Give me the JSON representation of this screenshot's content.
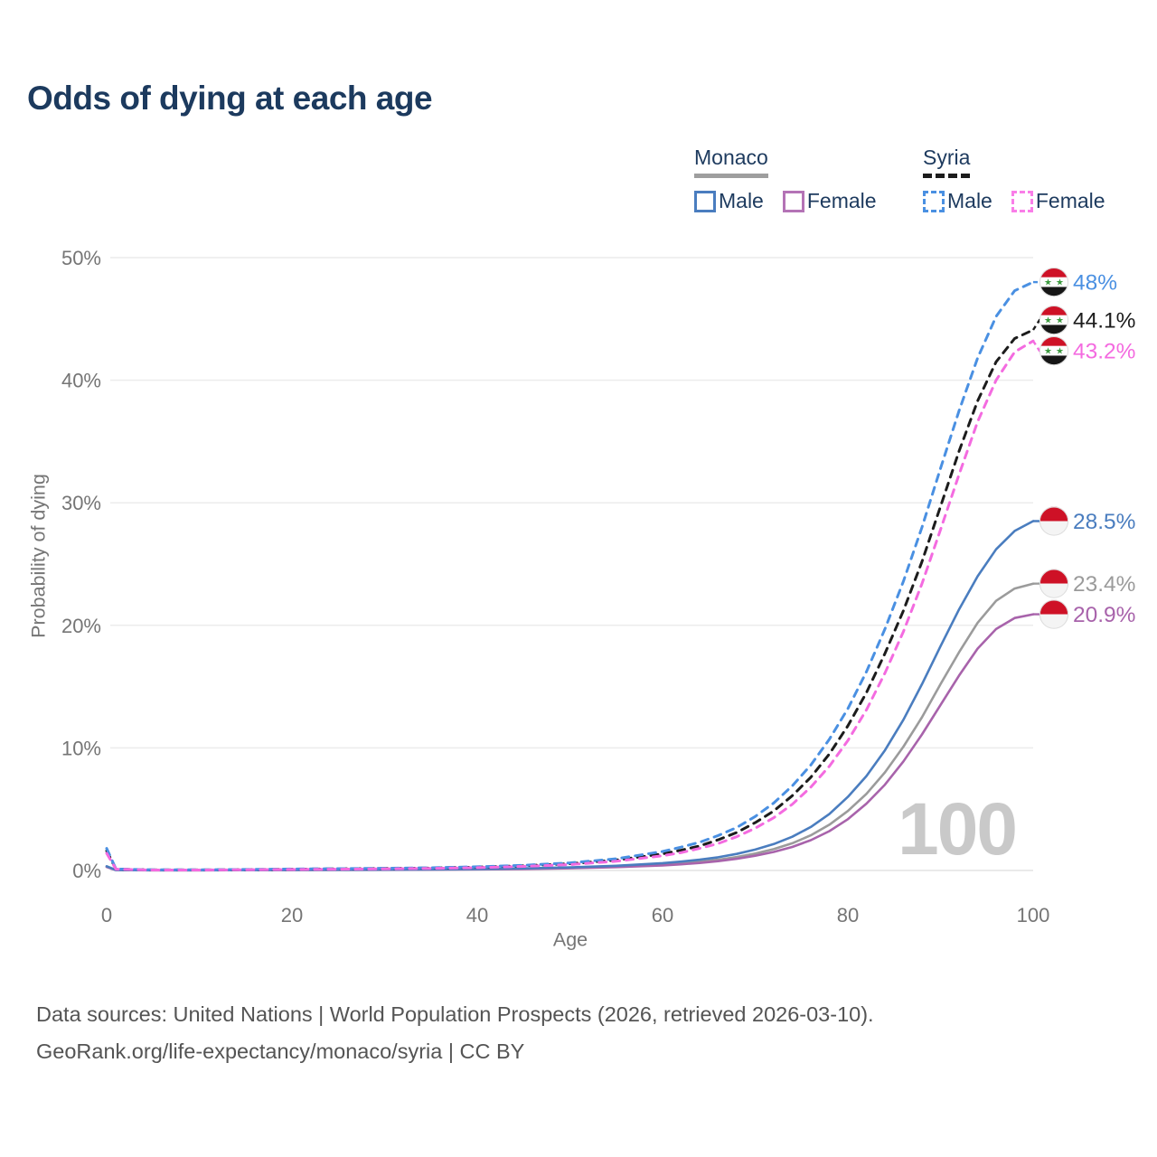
{
  "title": "Odds of dying at each age",
  "legend": {
    "groups": [
      {
        "country": "Monaco",
        "line_style": "solid",
        "line_color": "#9e9e9e",
        "items": [
          {
            "label": "Male",
            "color": "#4a7dbf"
          },
          {
            "label": "Female",
            "color": "#b473b6"
          }
        ]
      },
      {
        "country": "Syria",
        "line_style": "dashed",
        "line_color": "#1c1c1c",
        "items": [
          {
            "label": "Male",
            "color": "#4a90e2"
          },
          {
            "label": "Female",
            "color": "#f97ee8"
          }
        ]
      }
    ]
  },
  "chart_data": {
    "type": "line",
    "title": "Odds of dying at each age",
    "xlabel": "Age",
    "ylabel": "Probability of dying",
    "xlim": [
      0,
      100
    ],
    "ylim": [
      0,
      50
    ],
    "x_ticks": [
      0,
      20,
      40,
      60,
      80,
      100
    ],
    "y_ticks": [
      {
        "v": 0,
        "label": "0%"
      },
      {
        "v": 10,
        "label": "10%"
      },
      {
        "v": 20,
        "label": "20%"
      },
      {
        "v": 30,
        "label": "30%"
      },
      {
        "v": 40,
        "label": "40%"
      },
      {
        "v": 50,
        "label": "50%"
      }
    ],
    "age_watermark": "100",
    "grid": true,
    "ages": [
      0,
      1,
      5,
      10,
      15,
      20,
      25,
      30,
      35,
      40,
      45,
      50,
      55,
      60,
      62,
      64,
      66,
      68,
      70,
      72,
      74,
      76,
      78,
      80,
      82,
      84,
      86,
      88,
      90,
      92,
      94,
      96,
      98,
      100
    ],
    "series": [
      {
        "name": "Monaco both sexes",
        "country": "Monaco",
        "sex": "all",
        "color": "#9b9b9b",
        "dash": false,
        "flag": "monaco",
        "end_label": "23.4%",
        "values": [
          0.3,
          0.035,
          0.018,
          0.018,
          0.025,
          0.04,
          0.05,
          0.06,
          0.075,
          0.1,
          0.14,
          0.21,
          0.31,
          0.48,
          0.58,
          0.71,
          0.88,
          1.1,
          1.38,
          1.74,
          2.22,
          2.87,
          3.73,
          4.85,
          6.25,
          8.0,
          10.1,
          12.5,
          15.2,
          17.8,
          20.2,
          22.0,
          23.0,
          23.4
        ]
      },
      {
        "name": "Monaco female",
        "country": "Monaco",
        "sex": "female",
        "color": "#a863ab",
        "dash": false,
        "flag": "monaco",
        "end_label": "20.9%",
        "values": [
          0.28,
          0.03,
          0.015,
          0.015,
          0.02,
          0.03,
          0.04,
          0.05,
          0.065,
          0.085,
          0.12,
          0.18,
          0.27,
          0.41,
          0.5,
          0.61,
          0.76,
          0.95,
          1.2,
          1.51,
          1.92,
          2.47,
          3.21,
          4.18,
          5.45,
          7.0,
          8.9,
          11.1,
          13.5,
          15.9,
          18.1,
          19.7,
          20.6,
          20.9
        ]
      },
      {
        "name": "Monaco male",
        "country": "Monaco",
        "sex": "male",
        "color": "#4a7dbf",
        "dash": false,
        "flag": "monaco",
        "end_label": "28.5%",
        "values": [
          0.35,
          0.04,
          0.02,
          0.02,
          0.03,
          0.05,
          0.06,
          0.07,
          0.09,
          0.12,
          0.17,
          0.25,
          0.38,
          0.6,
          0.72,
          0.88,
          1.08,
          1.35,
          1.7,
          2.15,
          2.75,
          3.55,
          4.6,
          6.0,
          7.7,
          9.8,
          12.3,
          15.2,
          18.3,
          21.3,
          24.0,
          26.2,
          27.7,
          28.5
        ]
      },
      {
        "name": "Syria both sexes",
        "country": "Syria",
        "sex": "all",
        "color": "#1c1c1c",
        "dash": true,
        "flag": "syria",
        "end_label": "44.1%",
        "values": [
          1.6,
          0.11,
          0.045,
          0.045,
          0.07,
          0.1,
          0.13,
          0.16,
          0.2,
          0.27,
          0.38,
          0.55,
          0.85,
          1.35,
          1.65,
          2.0,
          2.5,
          3.1,
          3.9,
          4.85,
          6.1,
          7.6,
          9.5,
          11.8,
          14.5,
          17.7,
          21.2,
          25.2,
          29.7,
          34.2,
          38.3,
          41.5,
          43.4,
          44.1
        ]
      },
      {
        "name": "Syria male",
        "country": "Syria",
        "sex": "male",
        "color": "#4a90e2",
        "dash": true,
        "flag": "syria",
        "end_label": "48%",
        "values": [
          1.8,
          0.12,
          0.05,
          0.05,
          0.08,
          0.12,
          0.15,
          0.18,
          0.22,
          0.3,
          0.42,
          0.62,
          0.95,
          1.55,
          1.9,
          2.3,
          2.85,
          3.5,
          4.4,
          5.5,
          6.9,
          8.6,
          10.7,
          13.2,
          16.2,
          19.7,
          23.6,
          28.0,
          32.8,
          37.5,
          41.8,
          45.2,
          47.3,
          48.0
        ]
      },
      {
        "name": "Syria female",
        "country": "Syria",
        "sex": "female",
        "color": "#f46be0",
        "dash": true,
        "flag": "syria",
        "end_label": "43.2%",
        "values": [
          1.4,
          0.1,
          0.04,
          0.04,
          0.06,
          0.08,
          0.1,
          0.13,
          0.17,
          0.23,
          0.33,
          0.48,
          0.75,
          1.2,
          1.45,
          1.8,
          2.2,
          2.75,
          3.45,
          4.3,
          5.4,
          6.8,
          8.5,
          10.6,
          13.1,
          16.1,
          19.5,
          23.4,
          27.8,
          32.3,
          36.6,
          40.0,
          42.3,
          43.2
        ]
      }
    ]
  },
  "flag_colors": {
    "red": "#ce1126",
    "white": "#f4f4f4",
    "black": "#161616",
    "star_green": "#3f9c42"
  },
  "footer": {
    "line1": "Data sources: United Nations | World Population Prospects (2026, retrieved 2026-03-10).",
    "line2": "GeoRank.org/life-expectancy/monaco/syria | CC BY"
  }
}
